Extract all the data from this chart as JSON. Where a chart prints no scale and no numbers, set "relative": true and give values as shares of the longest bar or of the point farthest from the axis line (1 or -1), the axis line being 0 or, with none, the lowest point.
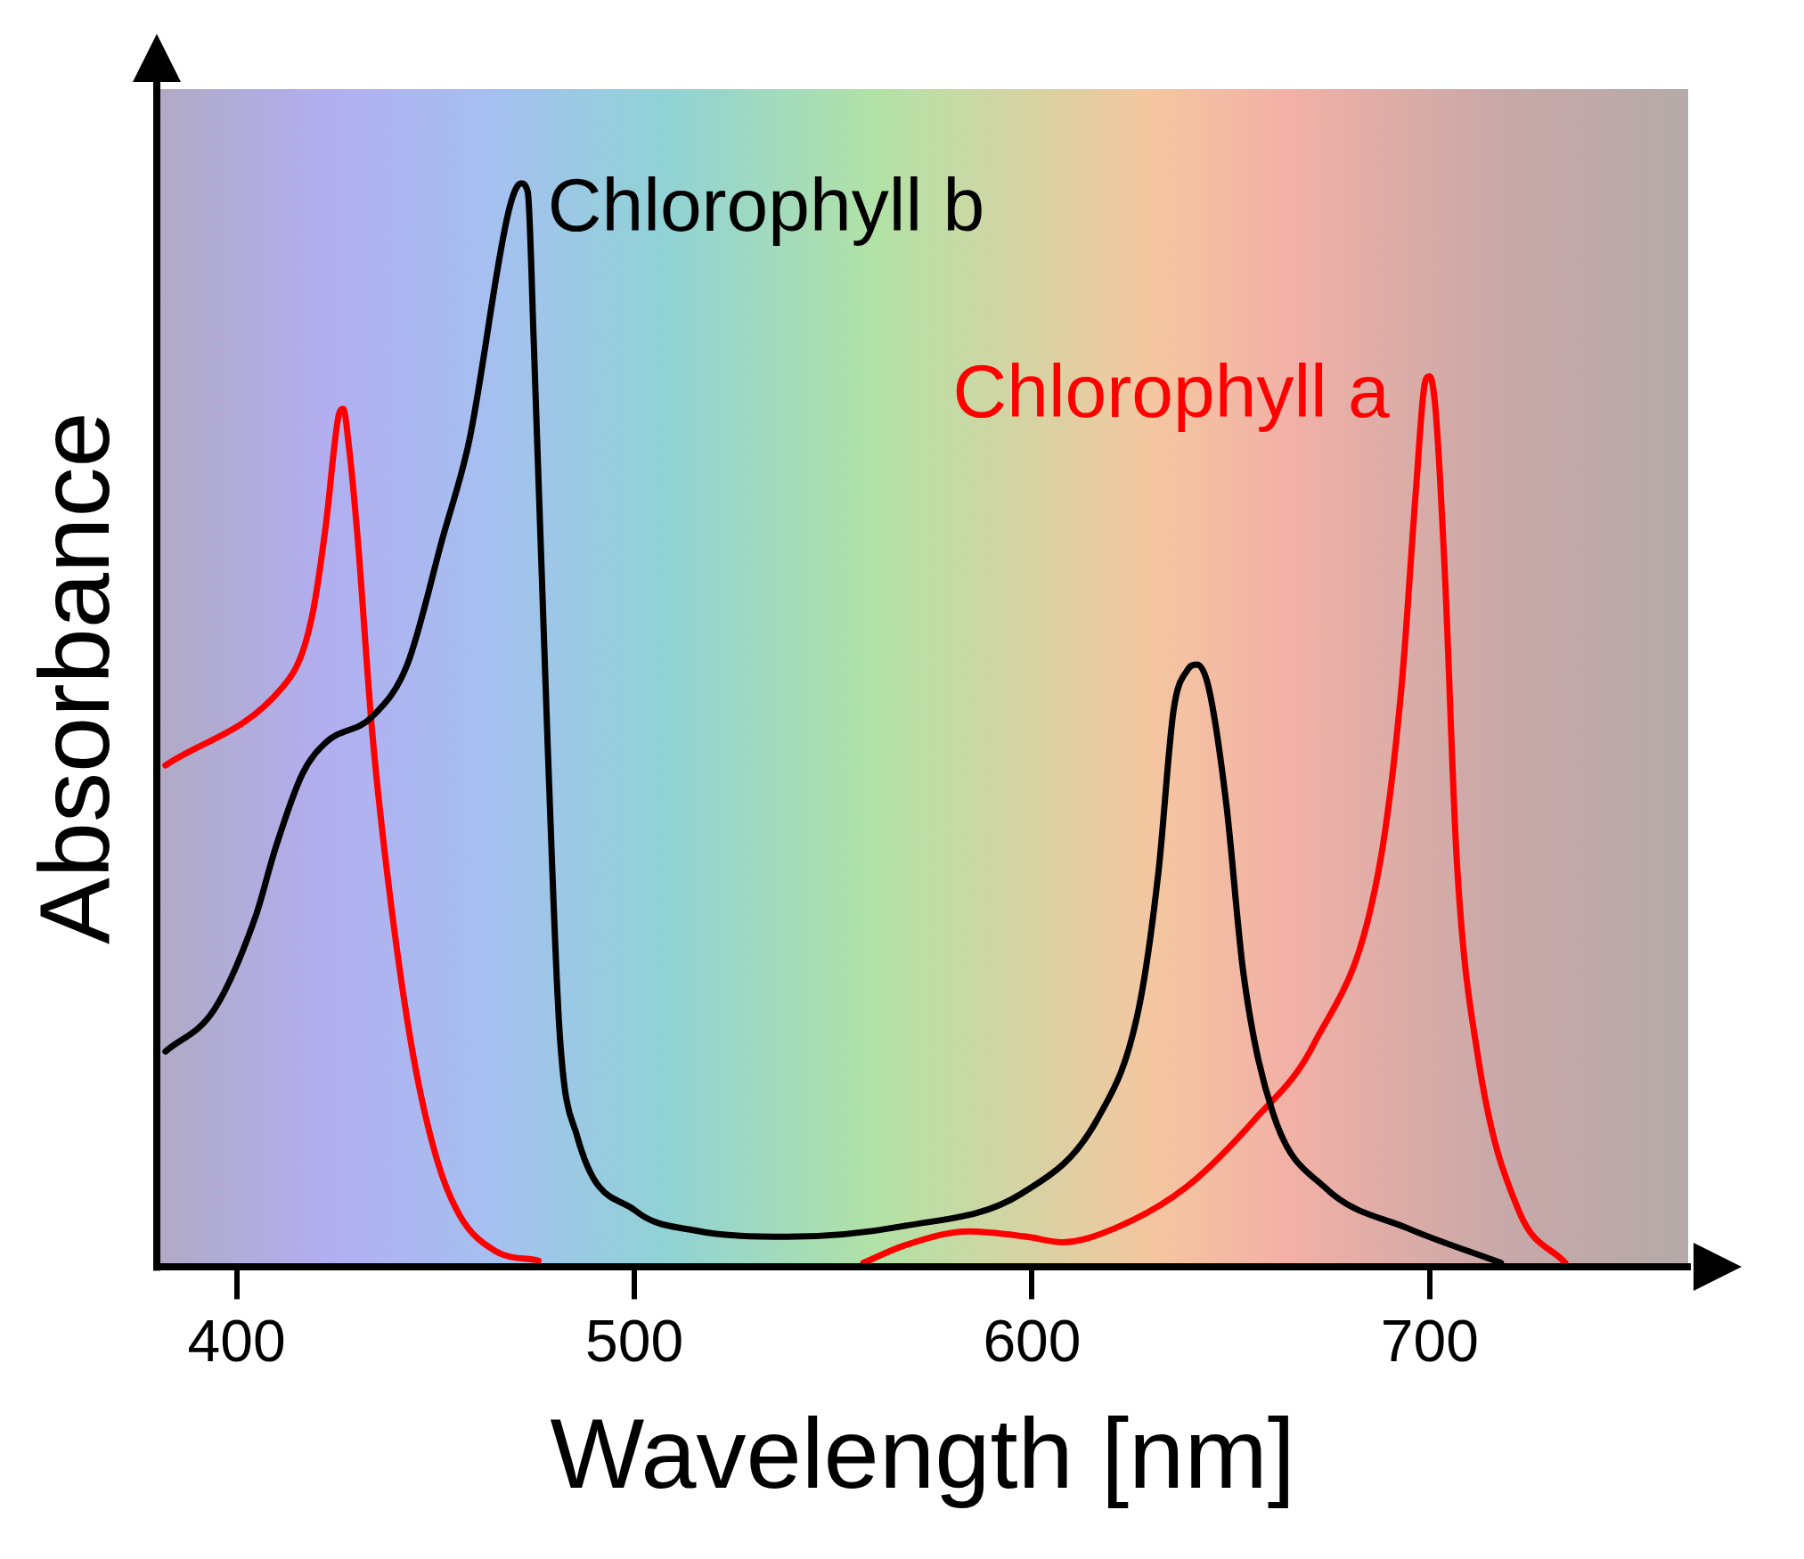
{
  "chart_data": {
    "type": "line",
    "xlabel": "Wavelength [nm]",
    "ylabel": "Absorbance",
    "relative": true,
    "xlim": [
      380,
      765
    ],
    "xticks": [
      400,
      500,
      600,
      700
    ],
    "marker": "none",
    "series": [
      {
        "name": "Chlorophyll b",
        "color": "#000000",
        "x": [
          382.1,
          394.4,
          404.7,
          409.7,
          416.5,
          422.4,
          434.1,
          442.9,
          451.8,
          458.5,
          468.5,
          471.5,
          473.2,
          474.7,
          478.2,
          481.2,
          485.6,
          500.3,
          515,
          538.5,
          567.9,
          597.4,
          616.5,
          626.8,
          631.8,
          635.6,
          639.1,
          641.5,
          644.4,
          648.8,
          653.2,
          660.6,
          673.8,
          694.4,
          717.9
        ],
        "values": [
          0.199,
          0.238,
          0.323,
          0.386,
          0.455,
          0.484,
          0.508,
          0.556,
          0.673,
          0.763,
          0.976,
          1.0,
          0.992,
          0.854,
          0.482,
          0.217,
          0.121,
          0.052,
          0.034,
          0.028,
          0.038,
          0.068,
          0.137,
          0.238,
          0.365,
          0.514,
          0.551,
          0.556,
          0.535,
          0.429,
          0.27,
          0.142,
          0.073,
          0.036,
          0.004
        ]
      },
      {
        "name": "Chlorophyll a",
        "color": "#ff0000",
        "x": [
          382.1,
          411.5,
          416.5,
          419.4,
          422.4,
          425.6,
          426.8,
          428.2,
          430.3,
          434.1,
          438.5,
          444.4,
          450.3,
          456.2,
          465,
          475.9,
          517,
          557.6,
          567.9,
          584.1,
          598.8,
          607.6,
          620.9,
          638.5,
          656.2,
          670.9,
          687.1,
          692.9,
          696.5,
          698.8,
          700,
          701.5,
          703.8,
          706.8,
          712.1,
          722.4,
          734.1
        ],
        "values": [
          0.463,
          0.535,
          0.567,
          0.609,
          0.684,
          0.785,
          0.792,
          0.758,
          0.678,
          0.493,
          0.344,
          0.195,
          0.1,
          0.047,
          0.015,
          0.006,
          null,
          0.004,
          0.02,
          0.033,
          0.028,
          0.023,
          0.036,
          0.073,
          0.137,
          0.206,
          0.365,
          0.535,
          0.715,
          0.816,
          0.822,
          0.79,
          0.641,
          0.376,
          0.195,
          0.052,
          0.004
        ]
      }
    ]
  }
}
